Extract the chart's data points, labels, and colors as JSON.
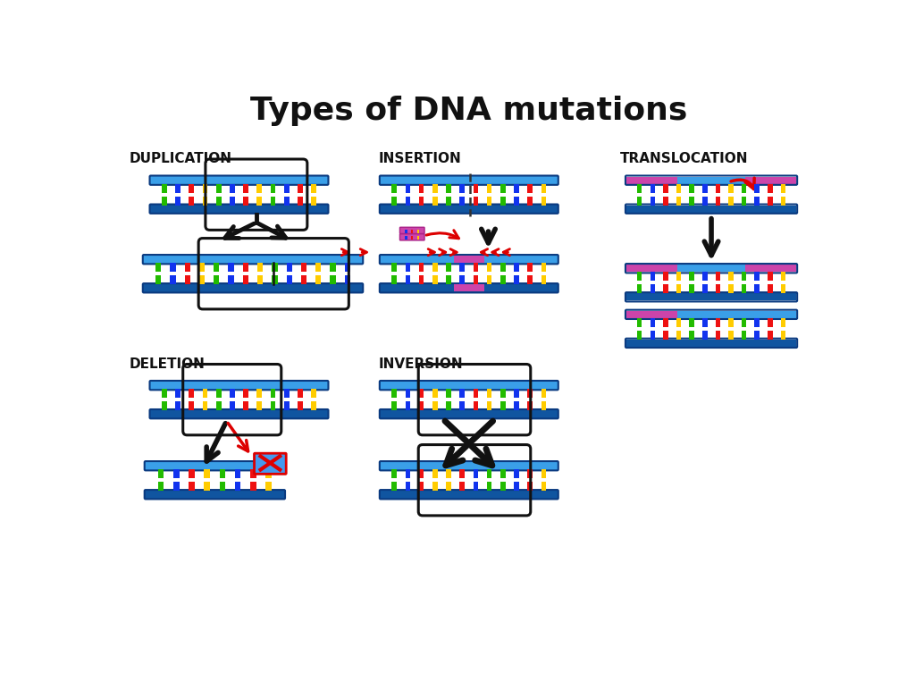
{
  "title": "Types of DNA mutations",
  "title_fontsize": 26,
  "title_fontweight": "bold",
  "bg": "#ffffff",
  "blue_top": "#3a9fe8",
  "blue_bot": "#1055a0",
  "blue_edge": "#0a3a80",
  "pink": "#cc44aa",
  "pink_edge": "#aa2288",
  "bar_colors": [
    "#ee1111",
    "#ffcc00",
    "#22bb00",
    "#1133ee",
    "#ff8800"
  ],
  "labels": [
    "DUPLICATION",
    "INSERTION",
    "TRANSLOCATION",
    "DELETION",
    "INVERSION"
  ],
  "label_fs": 11,
  "black": "#111111",
  "red": "#dd0000",
  "dna_sequences": {
    "std12": [
      "#22bb00",
      "#1133ee",
      "#ee1111",
      "#ffcc00",
      "#22bb00",
      "#1133ee",
      "#ee1111",
      "#ffcc00",
      "#22bb00",
      "#1133ee",
      "#ee1111",
      "#ffcc00"
    ],
    "std14": [
      "#22bb00",
      "#1133ee",
      "#ee1111",
      "#ffcc00",
      "#22bb00",
      "#1133ee",
      "#ee1111",
      "#ffcc00",
      "#22bb00",
      "#1133ee",
      "#ee1111",
      "#ffcc00",
      "#22bb00",
      "#1133ee"
    ],
    "std8": [
      "#22bb00",
      "#1133ee",
      "#ee1111",
      "#ffcc00",
      "#22bb00",
      "#1133ee",
      "#ee1111",
      "#ffcc00"
    ]
  }
}
